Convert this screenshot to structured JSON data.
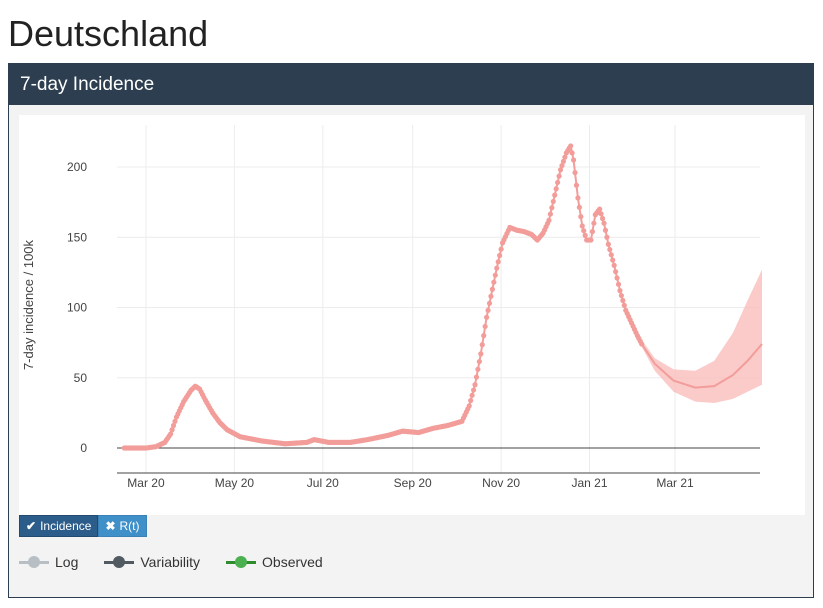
{
  "page": {
    "title": "Deutschland"
  },
  "panel": {
    "title": "7-day Incidence"
  },
  "tabs": [
    {
      "label": "Incidence",
      "icon": "check-icon",
      "active": true
    },
    {
      "label": "R(t)",
      "icon": "close-icon",
      "active": false
    }
  ],
  "legend": [
    {
      "label": "Log",
      "color": "#b8bfc4"
    },
    {
      "label": "Variability",
      "color": "#505a60"
    },
    {
      "label": "Observed",
      "color": "#4caf50"
    }
  ],
  "colors": {
    "observed": "#f29d9a",
    "forecast_band": "#f9b9b8",
    "header": "#2c3e50"
  },
  "chart_data": {
    "type": "scatter",
    "ylabel": "7-day incidence / 100k",
    "xlabel": "",
    "ylim": [
      -15,
      215
    ],
    "yticks": [
      0,
      50,
      100,
      150,
      200
    ],
    "xlim": [
      "2020-02-10",
      "2021-04-30"
    ],
    "xticks": [
      {
        "date": "2020-03-01",
        "label": "Mar 20"
      },
      {
        "date": "2020-05-01",
        "label": "May 20"
      },
      {
        "date": "2020-07-01",
        "label": "Jul 20"
      },
      {
        "date": "2020-09-01",
        "label": "Sep 20"
      },
      {
        "date": "2020-11-01",
        "label": "Nov 20"
      },
      {
        "date": "2021-01-01",
        "label": "Jan 21"
      },
      {
        "date": "2021-03-01",
        "label": "Mar 21"
      }
    ],
    "grid": true,
    "observed_anchors": [
      [
        "2020-02-15",
        0
      ],
      [
        "2020-03-01",
        0
      ],
      [
        "2020-03-08",
        1
      ],
      [
        "2020-03-14",
        4
      ],
      [
        "2020-03-18",
        10
      ],
      [
        "2020-03-22",
        22
      ],
      [
        "2020-03-27",
        33
      ],
      [
        "2020-04-01",
        41
      ],
      [
        "2020-04-04",
        44
      ],
      [
        "2020-04-07",
        42
      ],
      [
        "2020-04-11",
        34
      ],
      [
        "2020-04-16",
        25
      ],
      [
        "2020-04-21",
        18
      ],
      [
        "2020-04-26",
        13
      ],
      [
        "2020-05-05",
        8
      ],
      [
        "2020-05-20",
        5
      ],
      [
        "2020-06-05",
        3
      ],
      [
        "2020-06-20",
        4
      ],
      [
        "2020-06-25",
        6
      ],
      [
        "2020-07-05",
        4
      ],
      [
        "2020-07-20",
        4
      ],
      [
        "2020-08-01",
        6
      ],
      [
        "2020-08-15",
        9
      ],
      [
        "2020-08-25",
        12
      ],
      [
        "2020-09-05",
        11
      ],
      [
        "2020-09-15",
        14
      ],
      [
        "2020-09-25",
        16
      ],
      [
        "2020-10-05",
        19
      ],
      [
        "2020-10-10",
        30
      ],
      [
        "2020-10-14",
        45
      ],
      [
        "2020-10-18",
        67
      ],
      [
        "2020-10-22",
        93
      ],
      [
        "2020-10-25",
        108
      ],
      [
        "2020-10-29",
        128
      ],
      [
        "2020-11-02",
        146
      ],
      [
        "2020-11-07",
        157
      ],
      [
        "2020-11-12",
        155
      ],
      [
        "2020-11-17",
        154
      ],
      [
        "2020-11-22",
        152
      ],
      [
        "2020-11-26",
        148
      ],
      [
        "2020-11-30",
        153
      ],
      [
        "2020-12-04",
        162
      ],
      [
        "2020-12-08",
        180
      ],
      [
        "2020-12-12",
        198
      ],
      [
        "2020-12-16",
        210
      ],
      [
        "2020-12-19",
        215
      ],
      [
        "2020-12-21",
        205
      ],
      [
        "2020-12-24",
        178
      ],
      [
        "2020-12-27",
        158
      ],
      [
        "2020-12-30",
        148
      ],
      [
        "2021-01-02",
        148
      ],
      [
        "2021-01-05",
        166
      ],
      [
        "2021-01-08",
        170
      ],
      [
        "2021-01-11",
        160
      ],
      [
        "2021-01-14",
        145
      ],
      [
        "2021-01-18",
        130
      ],
      [
        "2021-01-22",
        112
      ],
      [
        "2021-01-26",
        98
      ],
      [
        "2021-01-30",
        89
      ],
      [
        "2021-02-03",
        80
      ],
      [
        "2021-02-06",
        74
      ]
    ],
    "forecast": [
      {
        "date": "2021-02-06",
        "mid": 74,
        "low": 72,
        "high": 77
      },
      {
        "date": "2021-02-15",
        "mid": 60,
        "low": 55,
        "high": 64
      },
      {
        "date": "2021-02-28",
        "mid": 48,
        "low": 40,
        "high": 56
      },
      {
        "date": "2021-03-15",
        "mid": 43,
        "low": 33,
        "high": 55
      },
      {
        "date": "2021-03-28",
        "mid": 44,
        "low": 32,
        "high": 62
      },
      {
        "date": "2021-04-10",
        "mid": 52,
        "low": 35,
        "high": 82
      },
      {
        "date": "2021-04-20",
        "mid": 62,
        "low": 40,
        "high": 105
      },
      {
        "date": "2021-04-30",
        "mid": 74,
        "low": 45,
        "high": 127
      }
    ]
  }
}
